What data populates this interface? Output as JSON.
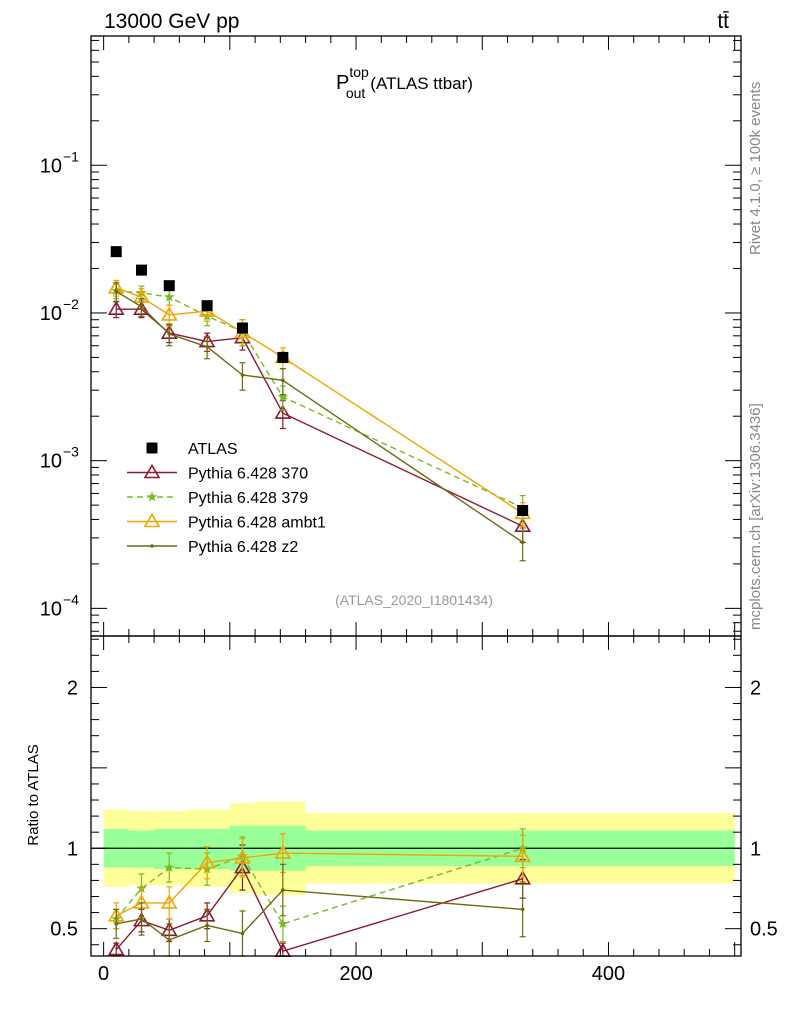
{
  "header": {
    "energy": "13000 GeV pp",
    "process": "tt̄"
  },
  "side_labels": {
    "rivet": "Rivet 4.1.0, ≥ 100k events",
    "source": "mcplots.cern.ch [arXiv:1306.3436]"
  },
  "chart_data": {
    "type": "line",
    "title_main": "P",
    "title_sup": "top",
    "title_sub": "out",
    "title_rest": "(ATLAS ttbar)",
    "analysis_id": "(ATLAS_2020_I1801434)",
    "x": [
      10,
      30,
      52,
      82,
      110,
      142,
      332
    ],
    "x_bin_edges": [
      0,
      20,
      40,
      65,
      100,
      120,
      160,
      500
    ],
    "xlim": [
      -10,
      505
    ],
    "x_ticks": [
      0,
      200,
      400
    ],
    "x_tick_labels": [
      "0",
      "200",
      "400"
    ],
    "main": {
      "yscale": "log",
      "ylim": [
        6.5e-05,
        0.75
      ],
      "y_ticks": [
        0.0001,
        0.001,
        0.01,
        0.1
      ],
      "y_tick_labels": [
        {
          "base": "10",
          "exp": "−4"
        },
        {
          "base": "10",
          "exp": "−3"
        },
        {
          "base": "10",
          "exp": "−2"
        },
        {
          "base": "10",
          "exp": "−1"
        }
      ]
    },
    "ratio": {
      "ylabel": "Ratio to ATLAS",
      "ylim": [
        0.33,
        2.32
      ],
      "y_ticks": [
        0.5,
        1,
        2
      ],
      "y_tick_labels": [
        "0.5",
        "1",
        "2"
      ],
      "band_inner": [
        [
          0.88,
          1.12
        ],
        [
          0.88,
          1.11
        ],
        [
          0.87,
          1.12
        ],
        [
          0.87,
          1.12
        ],
        [
          0.86,
          1.14
        ],
        [
          0.86,
          1.14
        ],
        [
          0.89,
          1.11
        ]
      ],
      "band_outer": [
        [
          0.76,
          1.24
        ],
        [
          0.77,
          1.23
        ],
        [
          0.77,
          1.23
        ],
        [
          0.76,
          1.24
        ],
        [
          0.72,
          1.28
        ],
        [
          0.71,
          1.29
        ],
        [
          0.78,
          1.22
        ]
      ]
    },
    "series": [
      {
        "name": "ATLAS",
        "color": "#000000",
        "marker": "square",
        "values": [
          0.026,
          0.0195,
          0.0153,
          0.0112,
          0.0079,
          0.005,
          0.00046
        ],
        "ratio": [
          1,
          1,
          1,
          1,
          1,
          1,
          1
        ]
      },
      {
        "name": "Pythia 6.428 370",
        "color": "#8b1a2e",
        "marker": "triangle-open",
        "dash": "",
        "values": [
          0.0106,
          0.0106,
          0.0073,
          0.0064,
          0.0068,
          0.0021,
          0.00036
        ],
        "errors": [
          0.0013,
          0.0013,
          0.001,
          0.0009,
          0.0012,
          0.00045,
          8e-05
        ],
        "ratio": [
          0.37,
          0.55,
          0.49,
          0.58,
          0.88,
          0.36,
          0.81
        ],
        "ratio_err": [
          0.04,
          0.07,
          0.07,
          0.08,
          0.14,
          0.05,
          0.12
        ]
      },
      {
        "name": "Pythia 6.428 379",
        "color": "#77bb22",
        "marker": "star",
        "dash": "6 4",
        "values": [
          0.0141,
          0.0137,
          0.0128,
          0.0095,
          0.0075,
          0.0027,
          0.00048
        ],
        "errors": [
          0.0016,
          0.0015,
          0.0015,
          0.0013,
          0.0015,
          0.0005,
          0.0001
        ],
        "ratio": [
          0.56,
          0.75,
          0.88,
          0.87,
          0.95,
          0.53,
          1.0
        ],
        "ratio_err": [
          0.06,
          0.09,
          0.09,
          0.1,
          0.12,
          0.11,
          0.12
        ]
      },
      {
        "name": "Pythia 6.428 ambt1",
        "color": "#f0a500",
        "marker": "triangle-open",
        "dash": "",
        "values": [
          0.0148,
          0.0128,
          0.0097,
          0.0103,
          0.0074,
          0.005,
          0.00044
        ],
        "errors": [
          0.0018,
          0.0018,
          0.0016,
          0.0015,
          0.0012,
          0.0008,
          8e-05
        ],
        "ratio": [
          0.58,
          0.66,
          0.66,
          0.91,
          0.94,
          0.97,
          0.95
        ],
        "ratio_err": [
          0.08,
          0.09,
          0.1,
          0.1,
          0.12,
          0.12,
          0.13
        ]
      },
      {
        "name": "Pythia 6.428 z2",
        "color": "#6b6b10",
        "marker": "dot",
        "dash": "",
        "values": [
          0.014,
          0.011,
          0.0072,
          0.0059,
          0.0038,
          0.0035,
          0.00028
        ],
        "errors": [
          0.002,
          0.0015,
          0.0012,
          0.001,
          0.0008,
          0.0007,
          7e-05
        ],
        "ratio": [
          0.53,
          0.56,
          0.43,
          0.52,
          0.47,
          0.74,
          0.62
        ],
        "ratio_err": [
          0.09,
          0.1,
          0.1,
          0.1,
          0.14,
          0.16,
          0.17
        ]
      }
    ]
  }
}
